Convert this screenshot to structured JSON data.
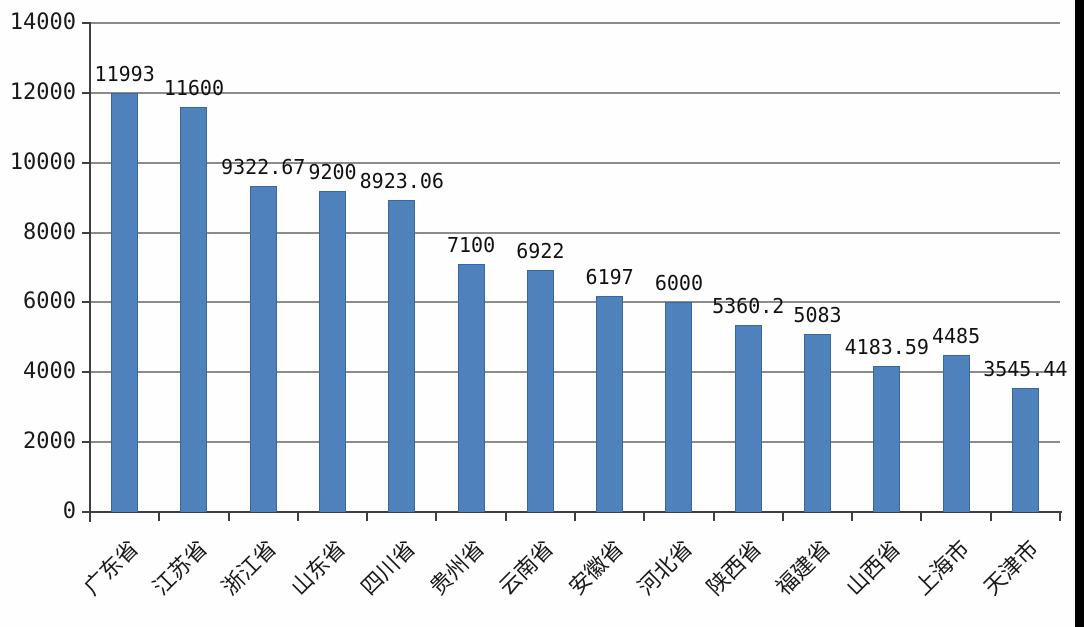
{
  "chart_data": {
    "type": "bar",
    "title": "",
    "xlabel": "",
    "ylabel": "",
    "categories": [
      "广东省",
      "江苏省",
      "浙江省",
      "山东省",
      "四川省",
      "贵州省",
      "云南省",
      "安徽省",
      "河北省",
      "陕西省",
      "福建省",
      "山西省",
      "上海市",
      "天津市"
    ],
    "values": [
      11993,
      11600,
      9322.67,
      9200,
      8923.06,
      7100,
      6922,
      6197,
      6000,
      5360.2,
      5083,
      4183.59,
      4485,
      3545.44
    ],
    "value_labels": [
      "11993",
      "11600",
      "9322.67",
      "9200",
      "8923.06",
      "7100",
      "6922",
      "6197",
      "6000",
      "5360.2",
      "5083",
      "4183.59",
      "4485",
      "3545.44"
    ],
    "ylim": [
      0,
      14000
    ],
    "yticks": [
      0,
      2000,
      4000,
      6000,
      8000,
      10000,
      12000,
      14000
    ],
    "grid": true,
    "legend": false,
    "x_label_rotation_deg": -45,
    "colors": {
      "bar_fill": "#4F81BD",
      "bar_border": "#39689C",
      "gridline": "#8C8C8C",
      "axis": "#3F3F3F",
      "text": "#1a1a1a",
      "background": "#fefefe",
      "right_edge_strip": "#000000"
    }
  }
}
